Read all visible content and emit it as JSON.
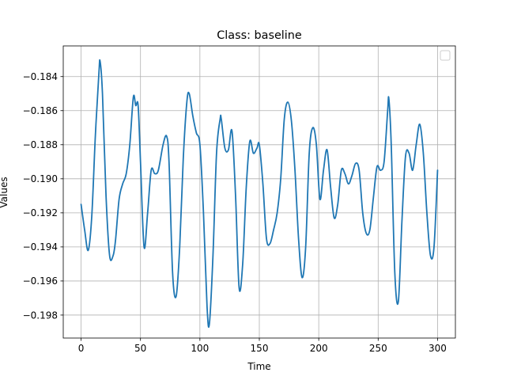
{
  "chart_data": {
    "type": "line",
    "title": "Class: baseline",
    "xlabel": "Time",
    "ylabel": "Values",
    "xlim": [
      -15,
      315
    ],
    "ylim": [
      -0.19935,
      -0.1822
    ],
    "xticks": [
      0,
      50,
      100,
      150,
      200,
      250,
      300
    ],
    "xtick_labels": [
      "0",
      "50",
      "100",
      "150",
      "200",
      "250",
      "300"
    ],
    "yticks": [
      -0.184,
      -0.186,
      -0.188,
      -0.19,
      -0.192,
      -0.194,
      -0.196,
      -0.198
    ],
    "ytick_labels": [
      "−0.184",
      "−0.186",
      "−0.188",
      "−0.190",
      "−0.192",
      "−0.194",
      "−0.196",
      "−0.198"
    ],
    "grid": true,
    "legend": "top-right (empty)",
    "series_color": "#1f77b4",
    "series": [
      {
        "x": [
          0,
          3,
          6,
          9,
          12,
          15,
          16,
          18,
          21,
          24,
          27,
          29,
          32,
          35,
          38,
          41,
          44,
          46,
          48,
          50,
          53,
          56,
          59,
          62,
          65,
          69,
          72,
          74,
          77,
          80,
          83,
          86,
          89,
          91,
          94,
          97,
          100,
          103,
          106,
          108,
          111,
          114,
          117,
          118,
          121,
          124,
          127,
          130,
          133,
          136,
          139,
          142,
          145,
          148,
          150,
          153,
          156,
          159,
          162,
          165,
          168,
          171,
          174,
          177,
          180,
          183,
          186,
          189,
          192,
          195,
          198,
          201,
          204,
          207,
          210,
          213,
          216,
          219,
          222,
          225,
          228,
          231,
          234,
          237,
          240,
          243,
          246,
          249,
          252,
          255,
          258,
          259,
          261,
          264,
          267,
          270,
          273,
          276,
          279,
          282,
          285,
          288,
          291,
          294,
          297,
          300
        ],
        "y": [
          -0.1915,
          -0.193,
          -0.1942,
          -0.1922,
          -0.1875,
          -0.1838,
          -0.1831,
          -0.185,
          -0.191,
          -0.1945,
          -0.1945,
          -0.1936,
          -0.1912,
          -0.1903,
          -0.1897,
          -0.188,
          -0.1852,
          -0.1857,
          -0.1857,
          -0.189,
          -0.194,
          -0.192,
          -0.1895,
          -0.1897,
          -0.1895,
          -0.188,
          -0.1875,
          -0.189,
          -0.1955,
          -0.1969,
          -0.194,
          -0.1888,
          -0.1855,
          -0.185,
          -0.1863,
          -0.1873,
          -0.188,
          -0.192,
          -0.1975,
          -0.1985,
          -0.1945,
          -0.1885,
          -0.1865,
          -0.1865,
          -0.1882,
          -0.1883,
          -0.1872,
          -0.191,
          -0.1964,
          -0.195,
          -0.1905,
          -0.1878,
          -0.1885,
          -0.1882,
          -0.188,
          -0.1903,
          -0.1935,
          -0.1938,
          -0.193,
          -0.192,
          -0.19,
          -0.1865,
          -0.1855,
          -0.1866,
          -0.1895,
          -0.1935,
          -0.1958,
          -0.194,
          -0.1885,
          -0.187,
          -0.188,
          -0.1912,
          -0.1895,
          -0.1883,
          -0.1905,
          -0.1923,
          -0.1915,
          -0.1895,
          -0.1897,
          -0.1903,
          -0.1898,
          -0.1891,
          -0.1895,
          -0.192,
          -0.1932,
          -0.193,
          -0.1911,
          -0.1893,
          -0.1895,
          -0.189,
          -0.186,
          -0.1853,
          -0.188,
          -0.1955,
          -0.1972,
          -0.1925,
          -0.1887,
          -0.1885,
          -0.1895,
          -0.188,
          -0.1868,
          -0.1885,
          -0.192,
          -0.1945,
          -0.194,
          -0.1895
        ]
      }
    ]
  }
}
